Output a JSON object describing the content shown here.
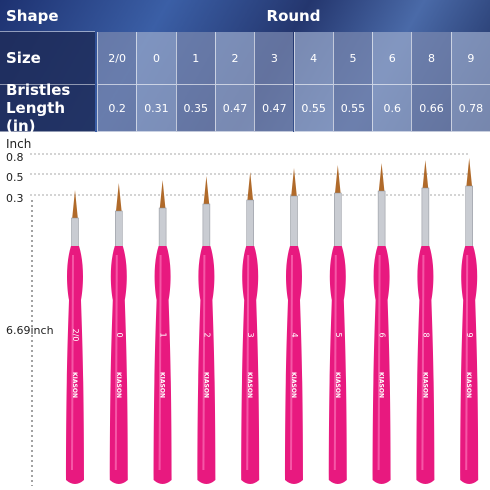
{
  "table": {
    "rows": [
      {
        "label": "Shape",
        "cells": [
          "Round"
        ]
      },
      {
        "label": "Size",
        "cells": [
          "2/0",
          0,
          1,
          2,
          3,
          4,
          5,
          6,
          8,
          9
        ]
      },
      {
        "label": "Bristles Length (in)",
        "cells": [
          0.2,
          0.31,
          0.35,
          0.47,
          0.47,
          0.55,
          0.55,
          0.6,
          0.66,
          0.78
        ]
      }
    ]
  },
  "scale": {
    "unit": "Inch",
    "marks": [
      0.8,
      0.5,
      0.3
    ],
    "length": "6.69inch"
  },
  "brushes": {
    "brand": "KIASON",
    "labels": [
      "2/0",
      0,
      1,
      2,
      3,
      4,
      5,
      6,
      8,
      9
    ]
  }
}
